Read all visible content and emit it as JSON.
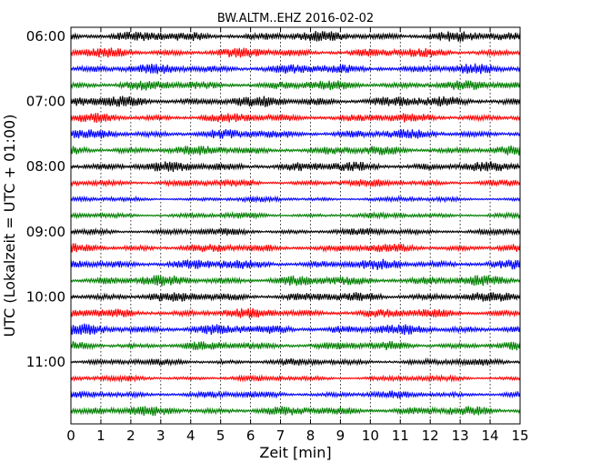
{
  "chart_data": {
    "type": "line",
    "title": "BW.ALTM..EHZ 2016-02-02",
    "xlabel": "Zeit  [min]",
    "ylabel": "UTC (Lokalzeit = UTC + 01:00)",
    "xlim": [
      0,
      15
    ],
    "x_ticks": [
      0,
      1,
      2,
      3,
      4,
      5,
      6,
      7,
      8,
      9,
      10,
      11,
      12,
      13,
      14,
      15
    ],
    "y_tick_labels": [
      "06:00",
      "07:00",
      "08:00",
      "09:00",
      "10:00",
      "11:00"
    ],
    "grid": true,
    "trace_interval_minutes": 15,
    "trace_start": "06:00",
    "colors": [
      "#000000",
      "#ff0000",
      "#0000ff",
      "#008000"
    ],
    "series": [
      {
        "start": "06:00",
        "color": "#000000",
        "amplitude": 0.72
      },
      {
        "start": "06:15",
        "color": "#ff0000",
        "amplitude": 0.66
      },
      {
        "start": "06:30",
        "color": "#0000ff",
        "amplitude": 0.7
      },
      {
        "start": "06:45",
        "color": "#008000",
        "amplitude": 0.68
      },
      {
        "start": "07:00",
        "color": "#000000",
        "amplitude": 0.76
      },
      {
        "start": "07:15",
        "color": "#ff0000",
        "amplitude": 0.64
      },
      {
        "start": "07:30",
        "color": "#0000ff",
        "amplitude": 0.66
      },
      {
        "start": "07:45",
        "color": "#008000",
        "amplitude": 0.66
      },
      {
        "start": "08:00",
        "color": "#000000",
        "amplitude": 0.7
      },
      {
        "start": "08:15",
        "color": "#ff0000",
        "amplitude": 0.5
      },
      {
        "start": "08:30",
        "color": "#0000ff",
        "amplitude": 0.36
      },
      {
        "start": "08:45",
        "color": "#008000",
        "amplitude": 0.4
      },
      {
        "start": "09:00",
        "color": "#000000",
        "amplitude": 0.48
      },
      {
        "start": "09:15",
        "color": "#ff0000",
        "amplitude": 0.6
      },
      {
        "start": "09:30",
        "color": "#0000ff",
        "amplitude": 0.7
      },
      {
        "start": "09:45",
        "color": "#008000",
        "amplitude": 0.72
      },
      {
        "start": "10:00",
        "color": "#000000",
        "amplitude": 0.68
      },
      {
        "start": "10:15",
        "color": "#ff0000",
        "amplitude": 0.66
      },
      {
        "start": "10:30",
        "color": "#0000ff",
        "amplitude": 0.74
      },
      {
        "start": "10:45",
        "color": "#008000",
        "amplitude": 0.6
      },
      {
        "start": "11:00",
        "color": "#000000",
        "amplitude": 0.48
      },
      {
        "start": "11:15",
        "color": "#ff0000",
        "amplitude": 0.4
      },
      {
        "start": "11:30",
        "color": "#0000ff",
        "amplitude": 0.5
      },
      {
        "start": "11:45",
        "color": "#008000",
        "amplitude": 0.66
      }
    ]
  }
}
